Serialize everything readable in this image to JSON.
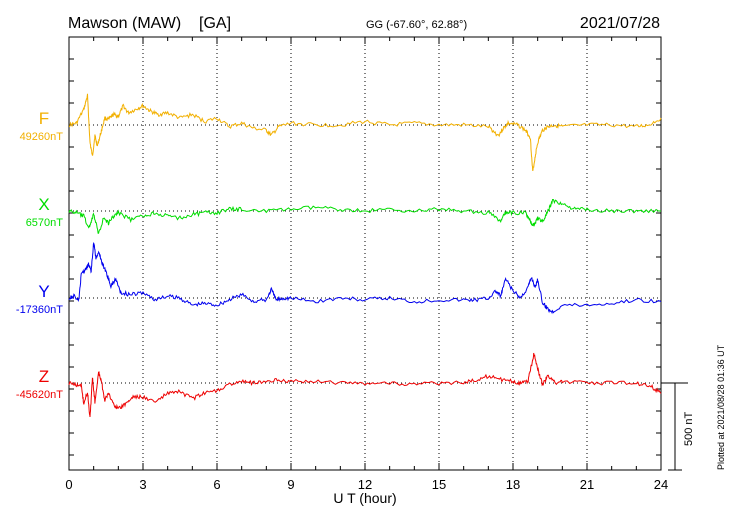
{
  "header": {
    "station": "Mawson (MAW)",
    "tag": "[GA]",
    "coords": "GG (-67.60°,  62.88°)",
    "date": "2021/07/28"
  },
  "side_note": "Plotted at 2021/08/28 01:36 UT",
  "scale_label": "500 nT",
  "chart_data": {
    "type": "line",
    "xlabel": "U T (hour)",
    "xlim": [
      0,
      24
    ],
    "xticks": [
      "0",
      "3",
      "6",
      "9",
      "12",
      "15",
      "18",
      "21",
      "24"
    ],
    "scale_bar_nT": 500,
    "grid": "dotted vertical every 3 h, dotted baseline per trace",
    "series": [
      {
        "name": "F",
        "baseline_label": "49260nT",
        "color": "#f2b000",
        "t": [
          0,
          0.3,
          0.6,
          0.75,
          0.85,
          0.95,
          1.05,
          1.15,
          1.3,
          1.45,
          1.6,
          1.8,
          2.0,
          2.2,
          2.4,
          2.7,
          3.0,
          3.3,
          3.6,
          4.0,
          4.5,
          5.0,
          5.5,
          6.0,
          6.5,
          7.0,
          7.5,
          8.0,
          8.2,
          8.5,
          9.0,
          10.0,
          11.0,
          12.0,
          13.0,
          14.0,
          15.0,
          16.0,
          17.0,
          17.4,
          17.6,
          17.8,
          18.2,
          18.5,
          18.7,
          18.8,
          18.9,
          19.0,
          19.2,
          19.4,
          19.7,
          20.0,
          21.0,
          22.0,
          23.0,
          23.5,
          24.0
        ],
        "v": [
          0,
          10,
          90,
          170,
          -100,
          -180,
          -60,
          -120,
          -40,
          40,
          30,
          60,
          50,
          110,
          70,
          90,
          110,
          80,
          60,
          70,
          40,
          60,
          20,
          40,
          -10,
          10,
          -20,
          -30,
          -60,
          -10,
          10,
          0,
          0,
          20,
          0,
          10,
          0,
          0,
          -10,
          -60,
          -20,
          10,
          0,
          -30,
          -70,
          -270,
          -180,
          -100,
          -30,
          -10,
          0,
          -10,
          0,
          0,
          -10,
          0,
          40
        ]
      },
      {
        "name": "X",
        "baseline_label": "6570nT",
        "color": "#00dd00",
        "t": [
          0,
          0.3,
          0.6,
          0.8,
          0.9,
          1.0,
          1.2,
          1.4,
          1.6,
          1.8,
          2.0,
          2.5,
          3.0,
          3.5,
          4.0,
          4.5,
          5.0,
          5.5,
          6.0,
          6.5,
          7.0,
          8.0,
          9.0,
          10.0,
          11.0,
          12.0,
          13.0,
          14.0,
          15.0,
          16.0,
          17.0,
          17.5,
          17.7,
          18.0,
          18.5,
          18.7,
          18.8,
          18.9,
          19.0,
          19.2,
          19.4,
          19.6,
          20.0,
          20.5,
          21.0,
          22.0,
          23.0,
          24.0
        ],
        "v": [
          0,
          -10,
          -30,
          -100,
          -60,
          -20,
          -130,
          -40,
          -70,
          -30,
          -10,
          -50,
          -30,
          -10,
          -30,
          -40,
          -20,
          -10,
          -10,
          10,
          10,
          0,
          10,
          20,
          10,
          0,
          10,
          0,
          10,
          0,
          -10,
          -60,
          -10,
          -10,
          -10,
          -60,
          -80,
          -70,
          -40,
          -60,
          -10,
          60,
          40,
          10,
          10,
          0,
          0,
          0
        ]
      },
      {
        "name": "Y",
        "baseline_label": "-17360nT",
        "color": "#0000ee",
        "t": [
          0,
          0.2,
          0.4,
          0.5,
          0.7,
          0.8,
          0.9,
          1.0,
          1.1,
          1.2,
          1.35,
          1.5,
          1.7,
          1.9,
          2.1,
          2.5,
          3.0,
          3.5,
          4.0,
          4.5,
          5.0,
          5.5,
          6.0,
          6.5,
          7.0,
          7.5,
          8.0,
          8.2,
          8.4,
          8.7,
          9.0,
          10.0,
          11.0,
          12.0,
          13.0,
          14.0,
          15.0,
          16.0,
          16.5,
          17.0,
          17.3,
          17.5,
          17.7,
          18.0,
          18.3,
          18.6,
          18.75,
          18.9,
          19.0,
          19.2,
          19.4,
          19.6,
          20.0,
          21.0,
          22.0,
          23.0,
          24.0
        ],
        "v": [
          0,
          10,
          -10,
          140,
          170,
          200,
          150,
          320,
          220,
          270,
          200,
          150,
          70,
          110,
          30,
          20,
          30,
          -10,
          10,
          0,
          -40,
          -30,
          -40,
          -10,
          20,
          -20,
          -10,
          50,
          -10,
          0,
          0,
          -20,
          0,
          -10,
          0,
          -20,
          -10,
          -10,
          -10,
          0,
          40,
          10,
          110,
          40,
          0,
          60,
          120,
          60,
          110,
          -30,
          -60,
          -80,
          -40,
          -40,
          -30,
          -10,
          -20
        ]
      },
      {
        "name": "Z",
        "baseline_label": "-45620nT",
        "color": "#ee0000",
        "t": [
          0,
          0.3,
          0.5,
          0.6,
          0.75,
          0.85,
          0.95,
          1.05,
          1.2,
          1.3,
          1.45,
          1.6,
          1.8,
          2.0,
          2.3,
          2.6,
          3.0,
          3.5,
          4.0,
          4.5,
          5.0,
          5.5,
          6.0,
          6.5,
          7.0,
          7.5,
          8.0,
          8.5,
          9.0,
          10.0,
          11.0,
          12.0,
          13.0,
          14.0,
          15.0,
          16.0,
          16.5,
          17.0,
          17.5,
          18.0,
          18.3,
          18.6,
          18.75,
          18.85,
          19.0,
          19.2,
          19.4,
          19.7,
          20.0,
          21.0,
          22.0,
          23.0,
          23.6,
          24.0
        ],
        "v": [
          0,
          -10,
          -20,
          -120,
          -50,
          -200,
          30,
          -110,
          60,
          20,
          -100,
          -60,
          -120,
          -150,
          -120,
          -80,
          -80,
          -110,
          -60,
          -50,
          -90,
          -60,
          -40,
          -10,
          10,
          0,
          10,
          20,
          10,
          10,
          0,
          0,
          0,
          -10,
          0,
          0,
          20,
          40,
          20,
          10,
          0,
          10,
          100,
          170,
          80,
          -10,
          40,
          0,
          10,
          0,
          0,
          0,
          -20,
          -60
        ]
      }
    ]
  }
}
